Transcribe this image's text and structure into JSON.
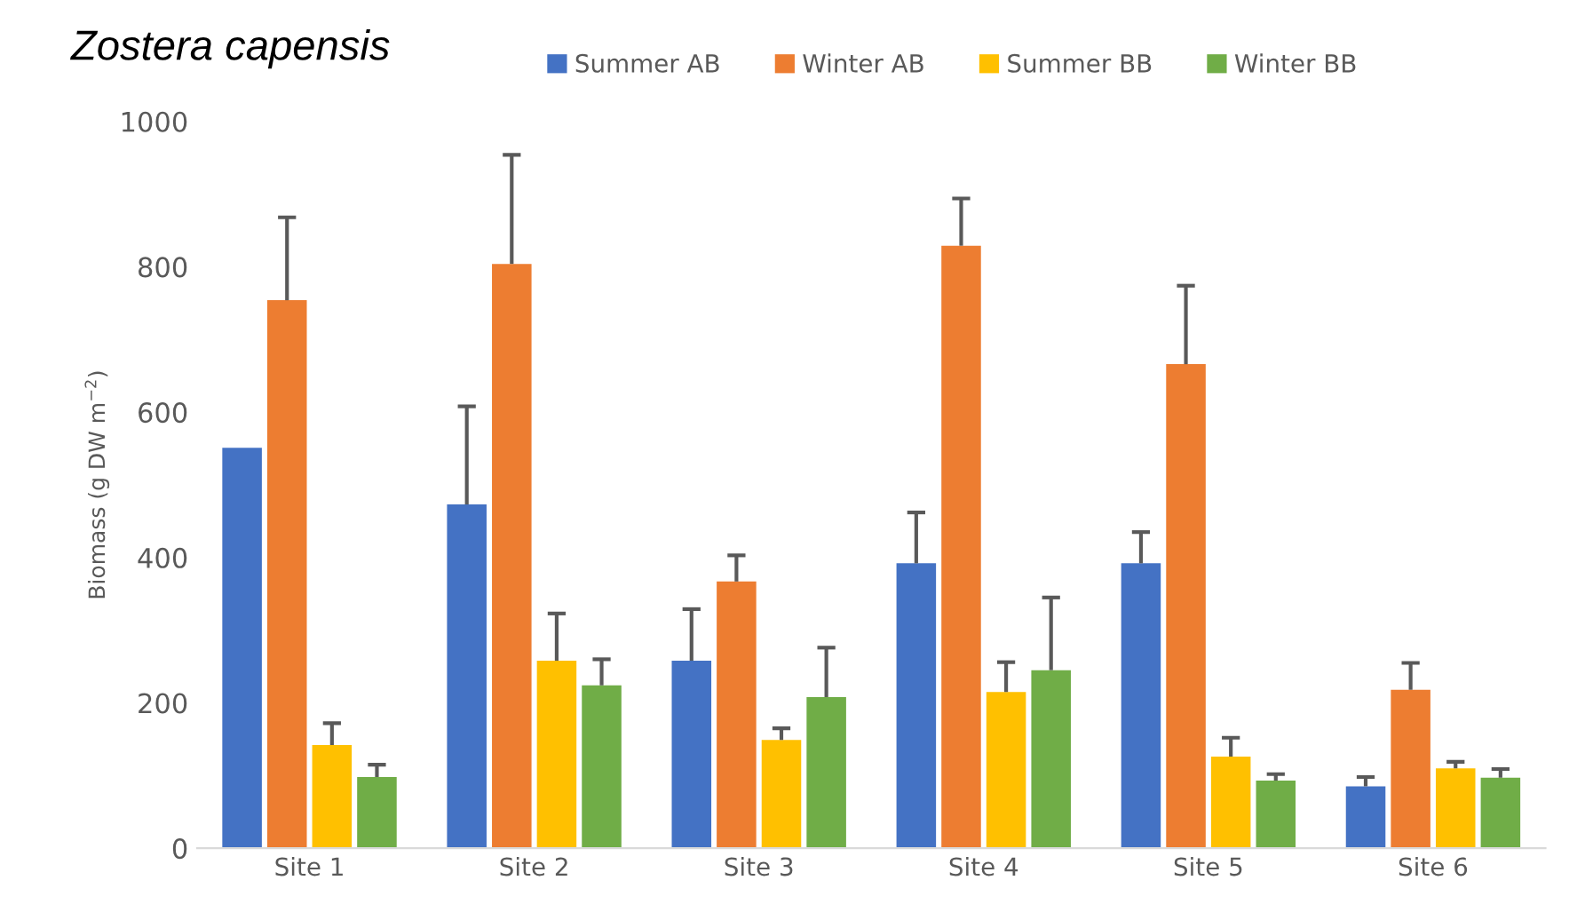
{
  "chart_data": {
    "type": "bar",
    "title": "Zostera capensis",
    "ylabel": "Biomass (g DW m$^{−2}$)",
    "categories": [
      "Site 1",
      "Site 2",
      "Site 3",
      "Site 4",
      "Site 5",
      "Site 6"
    ],
    "ylim": [
      0,
      1000
    ],
    "yticks": [
      0,
      200,
      400,
      600,
      800,
      1000
    ],
    "grid": false,
    "legend": "top",
    "series": [
      {
        "name": "Summer AB",
        "color": "#4472c4",
        "values": [
          551,
          473,
          258,
          392,
          392,
          85
        ],
        "errors": [
          null,
          [
            473,
            608
          ],
          [
            258,
            329
          ],
          [
            392,
            462
          ],
          [
            392,
            435
          ],
          [
            85,
            98
          ]
        ]
      },
      {
        "name": "Winter AB",
        "color": "#ed7d31",
        "values": [
          754,
          804,
          367,
          829,
          666,
          218
        ],
        "errors": [
          [
            754,
            868
          ],
          [
            804,
            954
          ],
          [
            367,
            403
          ],
          [
            829,
            894
          ],
          [
            666,
            774
          ],
          [
            218,
            255
          ]
        ]
      },
      {
        "name": "Summer BB",
        "color": "#ffc000",
        "values": [
          142,
          258,
          149,
          215,
          126,
          110
        ],
        "errors": [
          [
            142,
            172
          ],
          [
            258,
            323
          ],
          [
            149,
            165
          ],
          [
            215,
            256
          ],
          [
            126,
            152
          ],
          [
            110,
            119
          ]
        ]
      },
      {
        "name": "Winter BB",
        "color": "#70ad47",
        "values": [
          98,
          224,
          208,
          245,
          93,
          97
        ],
        "errors": [
          [
            98,
            115
          ],
          [
            224,
            260
          ],
          [
            208,
            276
          ],
          [
            245,
            345
          ],
          [
            93,
            102
          ],
          [
            97,
            109
          ]
        ]
      }
    ]
  }
}
